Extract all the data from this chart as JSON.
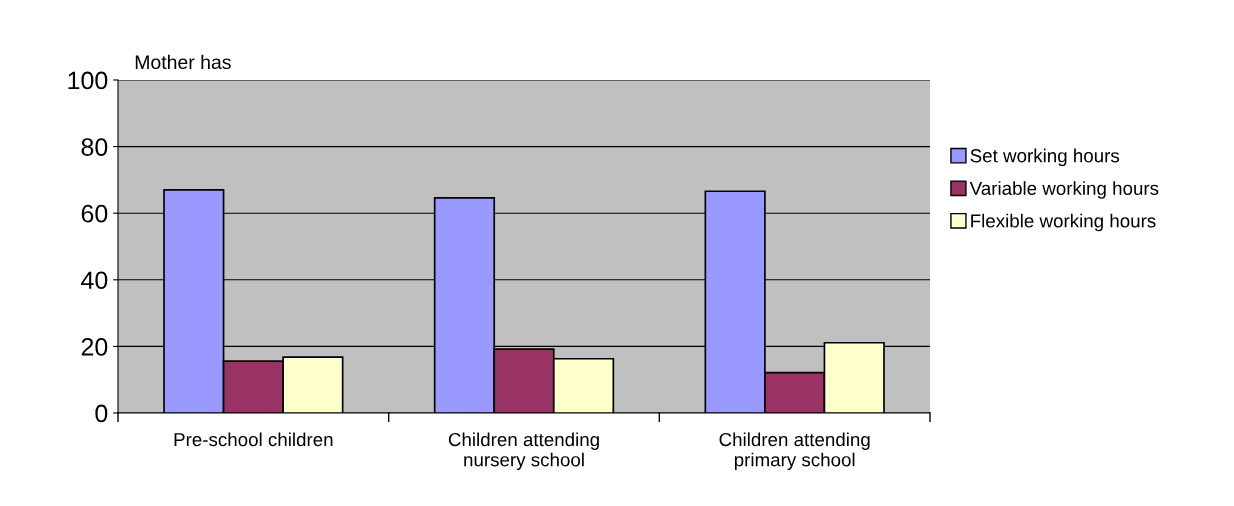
{
  "chart_data": {
    "type": "bar",
    "title": "Mother has",
    "categories": [
      "Pre-school children",
      "Children attending\nnursery school",
      "Children attending\nprimary school"
    ],
    "series": [
      {
        "name": "Set working hours",
        "color": "#9999ff",
        "values": [
          67.0,
          64.6,
          66.6
        ]
      },
      {
        "name": "Variable working hours",
        "color": "#993366",
        "values": [
          15.6,
          19.2,
          12.1
        ]
      },
      {
        "name": "Flexible working hours",
        "color": "#ffffcc",
        "values": [
          16.8,
          16.3,
          21.1
        ]
      }
    ],
    "ylim": [
      0,
      100
    ],
    "yticks": [
      0,
      20,
      40,
      60,
      80,
      100
    ],
    "grid": "y",
    "legend": "right"
  }
}
